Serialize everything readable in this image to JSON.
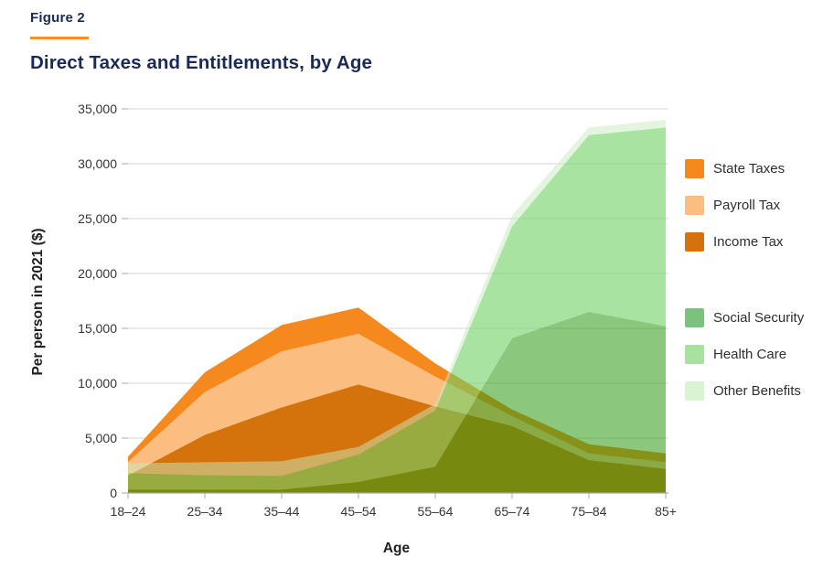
{
  "header": {
    "figure_label": "Figure 2",
    "title": "Direct Taxes and Entitlements, by Age"
  },
  "colors": {
    "navy": "#1b2a52",
    "orange_rule": "#f6921e",
    "grid": "#d6d6d6",
    "axis": "#a9a9a9",
    "tick_text": "#363636",
    "axis_title": "#1f1f1f",
    "fill_income": "#d4730b",
    "fill_payroll": "#fbbd80",
    "fill_state": "#f6891e",
    "fill_ss": "rgba(44,155,20,0.55)",
    "fill_hc": "rgba(110,208,100,0.6)",
    "fill_ob": "rgba(200,236,190,0.5)",
    "sw_state": "#f6891e",
    "sw_payroll": "#fbbd80",
    "sw_income": "#d4730b",
    "sw_ss": "#7cc17d",
    "sw_hc": "#a9e2a0",
    "sw_ob": "#d9f3d3"
  },
  "chart_data": {
    "type": "area",
    "stacked": true,
    "title": "Direct Taxes and Entitlements, by Age",
    "xlabel": "Age",
    "ylabel": "Per person in 2021 ($)",
    "ylim": [
      0,
      35000
    ],
    "grid": true,
    "legend_position": "right",
    "categories": [
      "18–24",
      "25–34",
      "35–44",
      "45–54",
      "55–64",
      "65–74",
      "75–84",
      "85+"
    ],
    "yticks": [
      {
        "value": 0,
        "label": "0"
      },
      {
        "value": 5000,
        "label": "5,000"
      },
      {
        "value": 10000,
        "label": "10,000"
      },
      {
        "value": 15000,
        "label": "15,000"
      },
      {
        "value": 20000,
        "label": "20,000"
      },
      {
        "value": 25000,
        "label": "25,000"
      },
      {
        "value": 30000,
        "label": "30,000"
      },
      {
        "value": 35000,
        "label": "35,000"
      }
    ],
    "series": [
      {
        "id": "income-tax",
        "name": "Income Tax",
        "group": "taxes",
        "fill_key": "fill_income",
        "values": [
          1600,
          5300,
          7800,
          9900,
          7900,
          6100,
          3000,
          2200
        ]
      },
      {
        "id": "payroll-tax",
        "name": "Payroll Tax",
        "group": "taxes",
        "fill_key": "fill_payroll",
        "values": [
          1200,
          3900,
          5100,
          4600,
          2700,
          900,
          600,
          600
        ]
      },
      {
        "id": "state-taxes",
        "name": "State Taxes",
        "group": "taxes",
        "fill_key": "fill_state",
        "values": [
          500,
          1800,
          2400,
          2400,
          1200,
          600,
          850,
          800
        ]
      },
      {
        "id": "social-security",
        "name": "Social Security",
        "group": "benefits",
        "fill_key": "fill_ss",
        "values": [
          300,
          300,
          300,
          1000,
          2400,
          14100,
          16500,
          15200
        ]
      },
      {
        "id": "health-care",
        "name": "Health Care",
        "group": "benefits",
        "fill_key": "fill_hc",
        "values": [
          1500,
          1300,
          1250,
          2500,
          5100,
          10200,
          16100,
          18100
        ]
      },
      {
        "id": "other-benefits",
        "name": "Other Benefits",
        "group": "benefits",
        "fill_key": "fill_ob",
        "values": [
          900,
          1200,
          1350,
          700,
          600,
          1000,
          700,
          700
        ]
      }
    ],
    "legend_groups": [
      {
        "items": [
          {
            "id": "state-taxes",
            "label": "State Taxes",
            "swatch_key": "sw_state"
          },
          {
            "id": "payroll-tax",
            "label": "Payroll Tax",
            "swatch_key": "sw_payroll"
          },
          {
            "id": "income-tax",
            "label": "Income Tax",
            "swatch_key": "sw_income"
          }
        ]
      },
      {
        "items": [
          {
            "id": "social-security",
            "label": "Social Security",
            "swatch_key": "sw_ss"
          },
          {
            "id": "health-care",
            "label": "Health Care",
            "swatch_key": "sw_hc"
          },
          {
            "id": "other-benefits",
            "label": "Other Benefits",
            "swatch_key": "sw_ob"
          }
        ]
      }
    ],
    "layout": {
      "x0": 140,
      "x1": 731,
      "dx": 84,
      "y0": 539,
      "scale": 0.012
    }
  }
}
